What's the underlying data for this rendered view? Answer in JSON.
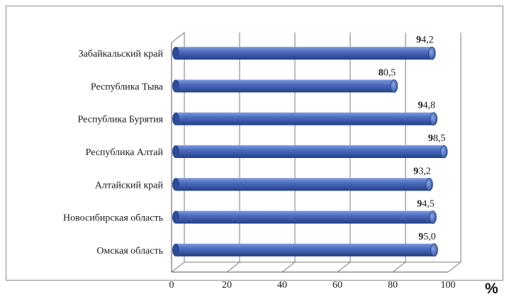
{
  "chart_data": {
    "type": "bar",
    "orientation": "horizontal",
    "categories": [
      "Забайкальский край",
      "Республика Тыва",
      "Республика Бурятия",
      "Республика Алтай",
      "Алтайский край",
      "Новосибирская область",
      "Омская область"
    ],
    "values": [
      94.2,
      80.5,
      94.8,
      98.5,
      93.2,
      94.5,
      95.0
    ],
    "value_labels": [
      "94,2",
      "80,5",
      "94,8",
      "98,5",
      "93,2",
      "94,5",
      "95,0"
    ],
    "xlim": [
      0,
      100
    ],
    "x_ticks": [
      "0",
      "20",
      "40",
      "60",
      "80",
      "100"
    ],
    "unit_label": "%",
    "grid": true,
    "legend": "none",
    "bar_color": "#3f5fae"
  }
}
